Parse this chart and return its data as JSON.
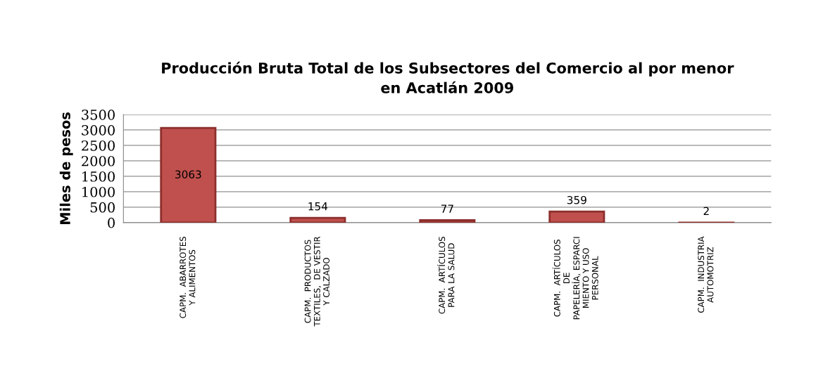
{
  "chart_data": {
    "type": "bar",
    "title": "Producción Bruta Total de los Subsectores del Comercio al por menor\nen Acatlán 2009",
    "ylabel": "Miles de pesos",
    "categories": [
      "CAPM.  ABARROTES\nY ALIMENTOS",
      "CAPM.  PRODUCTOS\nTEXTILES,  DE VESTIR\nY CALZADO",
      "CAPM.  ARTÍCULOS\nPARA LA SALUD",
      "CAPM.  ARTÍCULOS\nDE\nPAPELERÍA, ESPARCI\nMIENTO Y USO\nPERSONAL",
      "CAPM.  INDUSTRIA\nAUTOMOTRIZ"
    ],
    "values": [
      3063,
      154,
      77,
      359,
      2
    ],
    "color": "#c0504d",
    "ylim": [
      0,
      3500
    ],
    "yticks": [
      0,
      500,
      1000,
      1500,
      2000,
      2500,
      3000,
      3500
    ],
    "grid": "y",
    "data_labels": true,
    "legend": false
  }
}
